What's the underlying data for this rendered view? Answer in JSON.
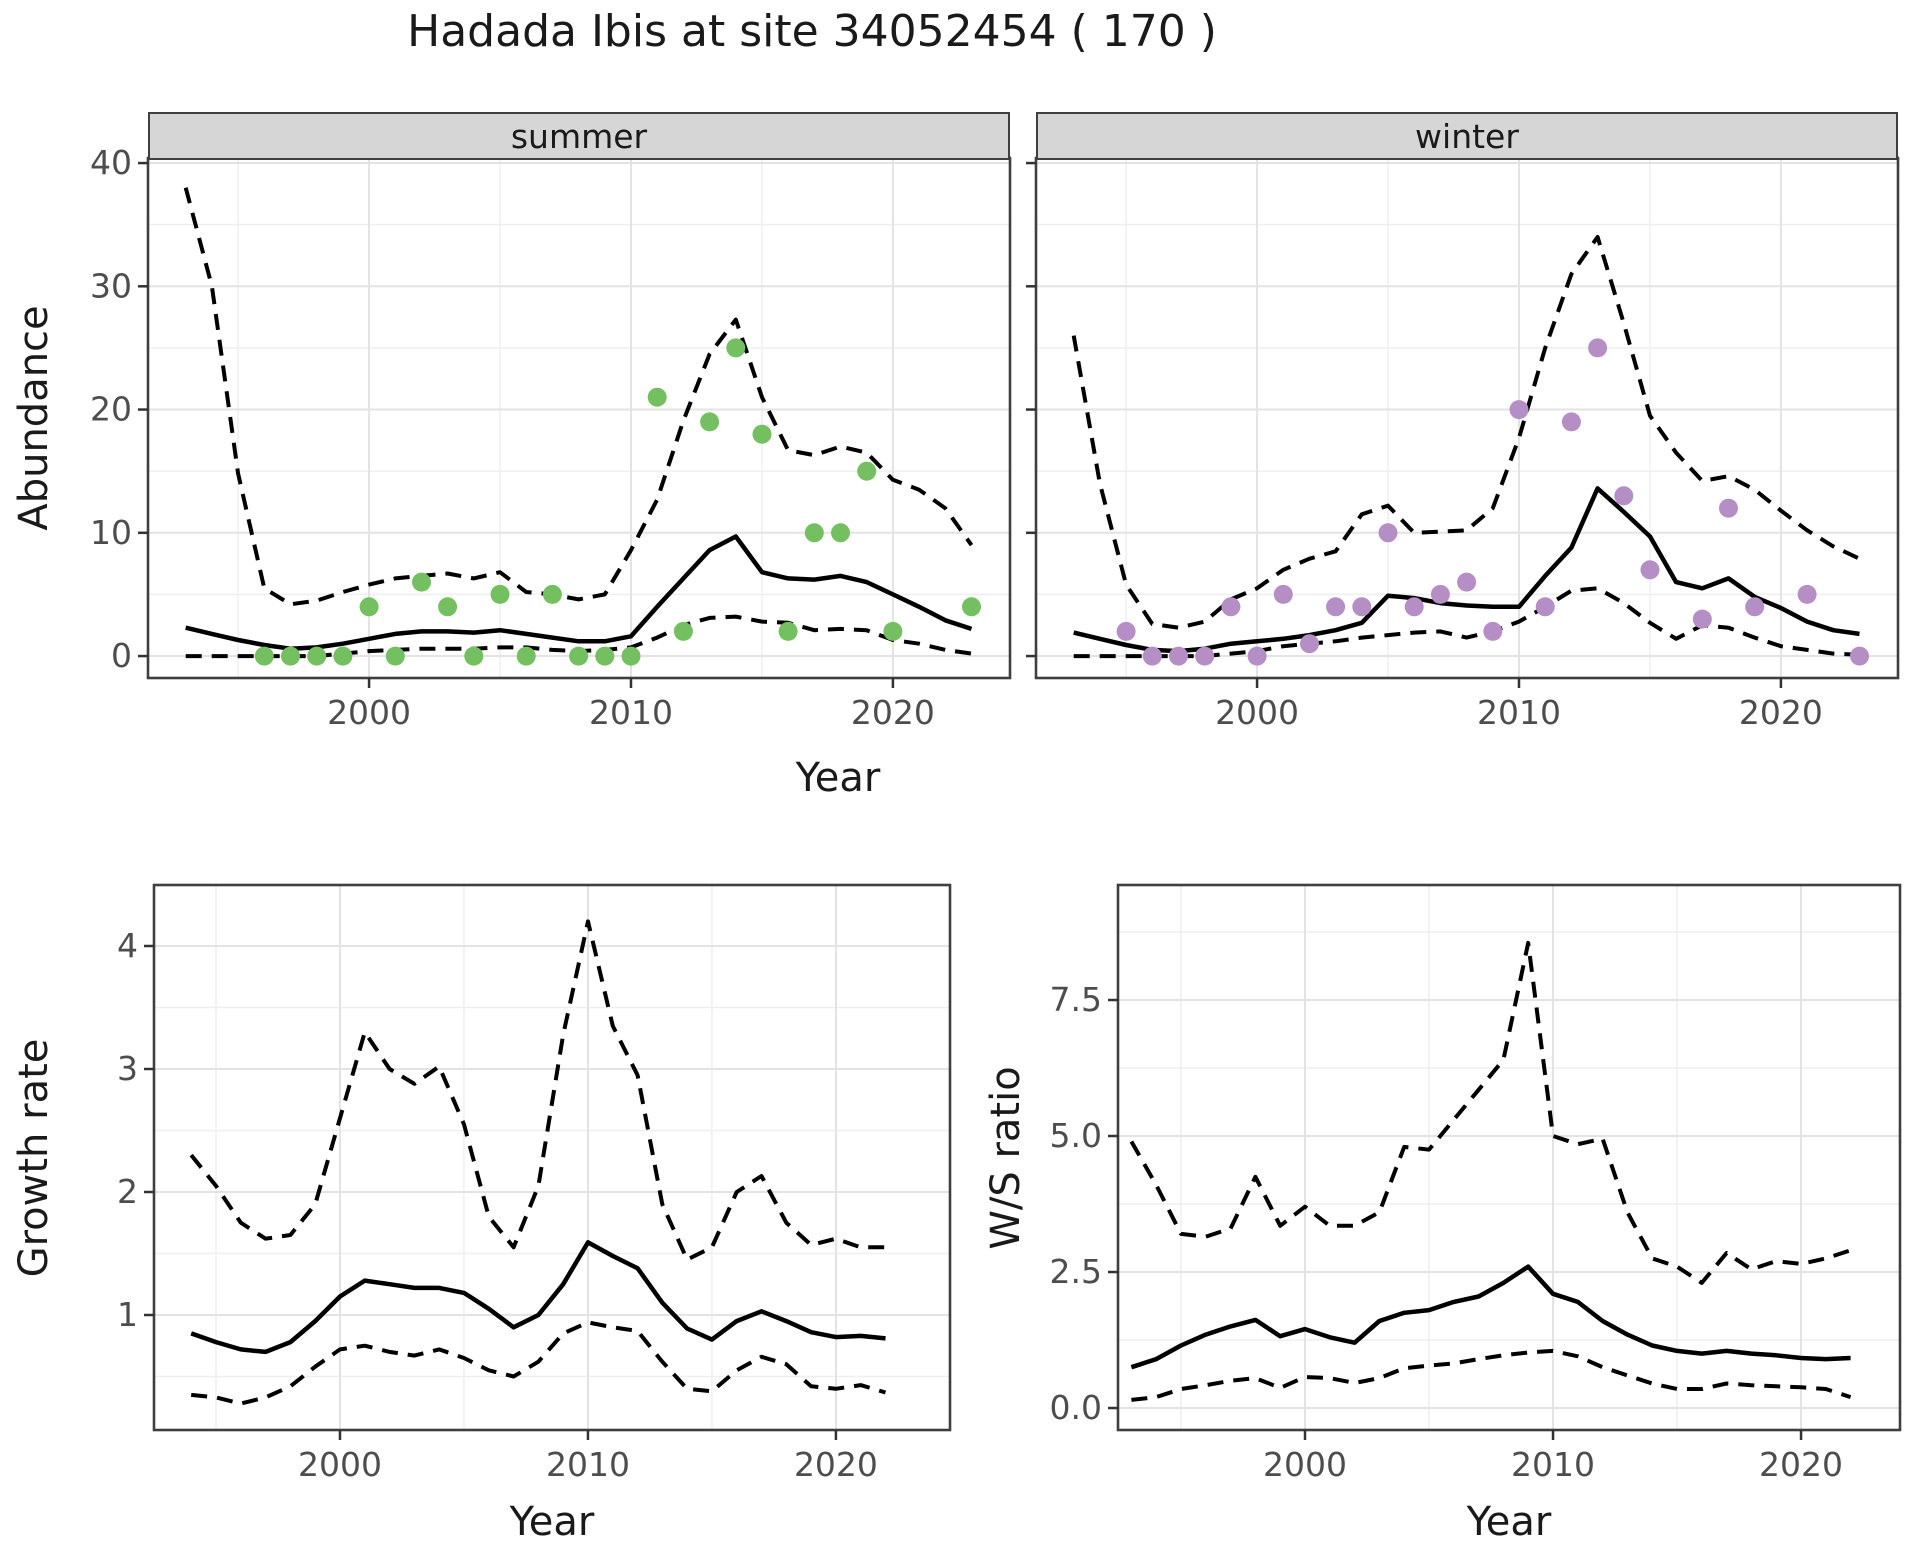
{
  "title": "Hadada Ibis at site 34052454 ( 170 )",
  "facets": {
    "summer": "summer",
    "winter": "winter"
  },
  "axes_labels": {
    "abundance": "Abundance",
    "growth_rate": "Growth rate",
    "ws_ratio": "W/S ratio",
    "year": "Year"
  },
  "colors": {
    "summer_points": "#74c061",
    "winter_points": "#b58ec6",
    "line": "#000000",
    "panel_border": "#3f3f3f",
    "strip_bg": "#d6d6d6",
    "grid_major": "#e3e3e3",
    "grid_minor": "#efefef",
    "tick_text": "#4d4d4d",
    "title_text": "#1a1a1a"
  },
  "chart_data": [
    {
      "id": "abundance-summer",
      "type": "line",
      "title": "summer facet: observed abundance with median and dashed 95% CI",
      "xlabel": "Year",
      "ylabel": "Abundance",
      "x": [
        1993,
        1994,
        1995,
        1996,
        1997,
        1998,
        1999,
        2000,
        2001,
        2002,
        2003,
        2004,
        2005,
        2006,
        2007,
        2008,
        2009,
        2010,
        2011,
        2012,
        2013,
        2014,
        2015,
        2016,
        2017,
        2018,
        2019,
        2020,
        2021,
        2022,
        2023
      ],
      "x_ticks": [
        2000,
        2010,
        2020
      ],
      "x_tick_labels": [
        "2000",
        "2010",
        "2020"
      ],
      "x_minor": [
        1995,
        2005,
        2015
      ],
      "y_ticks": [
        0,
        10,
        20,
        30,
        40
      ],
      "y_tick_labels": [
        "0",
        "10",
        "20",
        "30",
        "40"
      ],
      "y_minor": [
        5,
        15,
        25,
        35
      ],
      "show_y_labels": true,
      "ylim": [
        -1.8,
        40.4
      ],
      "legend": "none",
      "grid": true,
      "series": [
        {
          "name": "median",
          "style": "solid",
          "values": [
            2.3,
            1.8,
            1.3,
            0.9,
            0.6,
            0.7,
            1.0,
            1.4,
            1.8,
            2.0,
            2.0,
            1.9,
            2.1,
            1.8,
            1.5,
            1.2,
            1.2,
            1.6,
            4.0,
            6.3,
            8.6,
            9.7,
            6.8,
            6.3,
            6.2,
            6.5,
            6.0,
            5.0,
            4.0,
            2.9,
            2.2
          ]
        },
        {
          "name": "lower_ci",
          "style": "dashed",
          "values": [
            0,
            0,
            0,
            0,
            0,
            0,
            0.2,
            0.4,
            0.5,
            0.6,
            0.6,
            0.6,
            0.7,
            0.7,
            0.5,
            0.4,
            0.5,
            0.7,
            1.5,
            2.5,
            3.1,
            3.2,
            2.8,
            2.7,
            2.1,
            2.2,
            2.1,
            1.3,
            1.0,
            0.5,
            0.2
          ]
        },
        {
          "name": "upper_ci",
          "style": "dashed",
          "values": [
            38,
            30,
            14.8,
            5.5,
            4.2,
            4.5,
            5.2,
            5.8,
            6.3,
            6.5,
            6.7,
            6.3,
            6.8,
            5.2,
            5.0,
            4.6,
            5.0,
            8.6,
            12.7,
            19.1,
            24.5,
            27.3,
            21,
            16.7,
            16.3,
            17,
            16.5,
            14.3,
            13.5,
            12,
            9
          ]
        }
      ],
      "points": {
        "name": "observed-counts",
        "color_key": "summer_points",
        "values": [
          null,
          null,
          null,
          0,
          0,
          0,
          0,
          4,
          0,
          6,
          4,
          0,
          5,
          0,
          5,
          0,
          0,
          0,
          21,
          2,
          19,
          25,
          18,
          2,
          10,
          10,
          15,
          2,
          null,
          null,
          4
        ]
      }
    },
    {
      "id": "abundance-winter",
      "type": "line",
      "title": "winter facet: observed abundance with median and dashed 95% CI",
      "xlabel": "Year",
      "ylabel": "Abundance",
      "x": [
        1993,
        1994,
        1995,
        1996,
        1997,
        1998,
        1999,
        2000,
        2001,
        2002,
        2003,
        2004,
        2005,
        2006,
        2007,
        2008,
        2009,
        2010,
        2011,
        2012,
        2013,
        2014,
        2015,
        2016,
        2017,
        2018,
        2019,
        2020,
        2021,
        2022,
        2023
      ],
      "x_ticks": [
        2000,
        2010,
        2020
      ],
      "x_tick_labels": [
        "2000",
        "2010",
        "2020"
      ],
      "x_minor": [
        1995,
        2005,
        2015
      ],
      "y_ticks": [
        0,
        10,
        20,
        30,
        40
      ],
      "y_tick_labels": [
        "0",
        "10",
        "20",
        "30",
        "40"
      ],
      "y_minor": [
        5,
        15,
        25,
        35
      ],
      "show_y_labels": false,
      "ylim": [
        -1.8,
        40.4
      ],
      "legend": "none",
      "grid": true,
      "series": [
        {
          "name": "median",
          "style": "solid",
          "values": [
            1.9,
            1.4,
            0.9,
            0.5,
            0.4,
            0.6,
            1.0,
            1.2,
            1.4,
            1.7,
            2.1,
            2.7,
            4.9,
            4.7,
            4.3,
            4.1,
            4.0,
            4.0,
            6.5,
            8.8,
            13.6,
            11.7,
            9.7,
            6.0,
            5.5,
            6.3,
            4.8,
            3.9,
            2.8,
            2.1,
            1.8
          ]
        },
        {
          "name": "lower_ci",
          "style": "dashed",
          "values": [
            0,
            0,
            0,
            0,
            0,
            0,
            0.2,
            0.4,
            0.8,
            1.0,
            1.2,
            1.5,
            1.7,
            1.9,
            2.0,
            1.5,
            2.0,
            2.8,
            4.0,
            5.3,
            5.5,
            4.3,
            2.7,
            1.4,
            2.5,
            2.3,
            1.5,
            0.8,
            0.5,
            0.2,
            0.1
          ]
        },
        {
          "name": "upper_ci",
          "style": "dashed",
          "values": [
            26,
            14,
            5.8,
            2.6,
            2.3,
            2.8,
            4.6,
            5.5,
            7.0,
            7.9,
            8.5,
            11.5,
            12.2,
            10.0,
            10.1,
            10.2,
            12.0,
            17.7,
            25.0,
            31.0,
            34.0,
            27.0,
            19.5,
            16.5,
            14.2,
            14.6,
            13.5,
            11.8,
            10.2,
            8.9,
            7.9
          ]
        }
      ],
      "points": {
        "name": "observed-counts",
        "color_key": "winter_points",
        "values": [
          null,
          null,
          2,
          0,
          0,
          0,
          4,
          0,
          5,
          1,
          4,
          4,
          10,
          4,
          5,
          6,
          2,
          20,
          4,
          19,
          25,
          13,
          7,
          null,
          3,
          12,
          4,
          null,
          5,
          null,
          0
        ]
      }
    },
    {
      "id": "growth-rate",
      "type": "line",
      "title": "Growth rate with dashed 95% CI",
      "xlabel": "Year",
      "ylabel": "Growth rate",
      "x": [
        1994,
        1995,
        1996,
        1997,
        1998,
        1999,
        2000,
        2001,
        2002,
        2003,
        2004,
        2005,
        2006,
        2007,
        2008,
        2009,
        2010,
        2011,
        2012,
        2013,
        2014,
        2015,
        2016,
        2017,
        2018,
        2019,
        2020,
        2021,
        2022
      ],
      "x_ticks": [
        2000,
        2010,
        2020
      ],
      "x_tick_labels": [
        "2000",
        "2010",
        "2020"
      ],
      "x_minor": [
        1995,
        2005,
        2015
      ],
      "y_ticks": [
        1,
        2,
        3,
        4
      ],
      "y_tick_labels": [
        "1",
        "2",
        "3",
        "4"
      ],
      "y_minor": [
        0.5,
        1.5,
        2.5,
        3.5
      ],
      "show_y_labels": true,
      "ylim": [
        0.07,
        4.5
      ],
      "legend": "none",
      "grid": true,
      "series": [
        {
          "name": "median",
          "style": "solid",
          "values": [
            0.85,
            0.78,
            0.72,
            0.7,
            0.78,
            0.95,
            1.15,
            1.28,
            1.25,
            1.22,
            1.22,
            1.18,
            1.05,
            0.9,
            1.0,
            1.25,
            1.59,
            1.48,
            1.38,
            1.1,
            0.89,
            0.8,
            0.95,
            1.03,
            0.95,
            0.86,
            0.82,
            0.83,
            0.81
          ]
        },
        {
          "name": "lower_ci",
          "style": "dashed",
          "values": [
            0.35,
            0.33,
            0.28,
            0.33,
            0.42,
            0.58,
            0.72,
            0.75,
            0.7,
            0.67,
            0.72,
            0.65,
            0.55,
            0.5,
            0.62,
            0.85,
            0.94,
            0.9,
            0.87,
            0.62,
            0.4,
            0.38,
            0.55,
            0.66,
            0.6,
            0.42,
            0.4,
            0.43,
            0.37
          ]
        },
        {
          "name": "upper_ci",
          "style": "dashed",
          "values": [
            2.3,
            2.05,
            1.75,
            1.62,
            1.65,
            1.9,
            2.6,
            3.3,
            3.0,
            2.88,
            3.02,
            2.55,
            1.8,
            1.55,
            2.05,
            3.28,
            4.2,
            3.35,
            2.95,
            1.9,
            1.45,
            1.55,
            2.0,
            2.13,
            1.75,
            1.57,
            1.62,
            1.55,
            1.55
          ]
        }
      ],
      "points": null
    },
    {
      "id": "ws-ratio",
      "type": "line",
      "title": "Winter/Summer ratio with dashed 95% CI",
      "xlabel": "Year",
      "ylabel": "W/S ratio",
      "x": [
        1993,
        1994,
        1995,
        1996,
        1997,
        1998,
        1999,
        2000,
        2001,
        2002,
        2003,
        2004,
        2005,
        2006,
        2007,
        2008,
        2009,
        2010,
        2011,
        2012,
        2013,
        2014,
        2015,
        2016,
        2017,
        2018,
        2019,
        2020,
        2021,
        2022
      ],
      "x_ticks": [
        2000,
        2010,
        2020
      ],
      "x_tick_labels": [
        "2000",
        "2010",
        "2020"
      ],
      "x_minor": [
        1995,
        2005,
        2015
      ],
      "y_ticks": [
        0,
        2.5,
        5,
        7.5
      ],
      "y_tick_labels": [
        "0.0",
        "2.5",
        "5.0",
        "7.5"
      ],
      "y_minor": [
        1.25,
        3.75,
        6.25,
        8.75
      ],
      "show_y_labels": true,
      "ylim": [
        -0.4,
        9.6
      ],
      "legend": "none",
      "grid": true,
      "series": [
        {
          "name": "median",
          "style": "solid",
          "values": [
            0.75,
            0.9,
            1.15,
            1.35,
            1.5,
            1.62,
            1.32,
            1.45,
            1.3,
            1.2,
            1.6,
            1.75,
            1.8,
            1.95,
            2.05,
            2.3,
            2.6,
            2.1,
            1.95,
            1.6,
            1.35,
            1.15,
            1.05,
            1.0,
            1.05,
            1.0,
            0.97,
            0.92,
            0.9,
            0.92
          ]
        },
        {
          "name": "lower_ci",
          "style": "dashed",
          "values": [
            0.15,
            0.2,
            0.35,
            0.42,
            0.5,
            0.55,
            0.37,
            0.57,
            0.55,
            0.46,
            0.55,
            0.73,
            0.78,
            0.82,
            0.9,
            0.97,
            1.02,
            1.05,
            0.95,
            0.75,
            0.6,
            0.45,
            0.35,
            0.35,
            0.45,
            0.42,
            0.4,
            0.38,
            0.35,
            0.2
          ]
        },
        {
          "name": "upper_ci",
          "style": "dashed",
          "values": [
            4.9,
            4.1,
            3.2,
            3.15,
            3.3,
            4.25,
            3.35,
            3.7,
            3.35,
            3.35,
            3.6,
            4.8,
            4.75,
            5.3,
            5.85,
            6.4,
            8.55,
            5.0,
            4.85,
            4.95,
            3.6,
            2.75,
            2.6,
            2.3,
            2.85,
            2.55,
            2.7,
            2.65,
            2.75,
            2.9
          ]
        }
      ],
      "points": null
    }
  ]
}
